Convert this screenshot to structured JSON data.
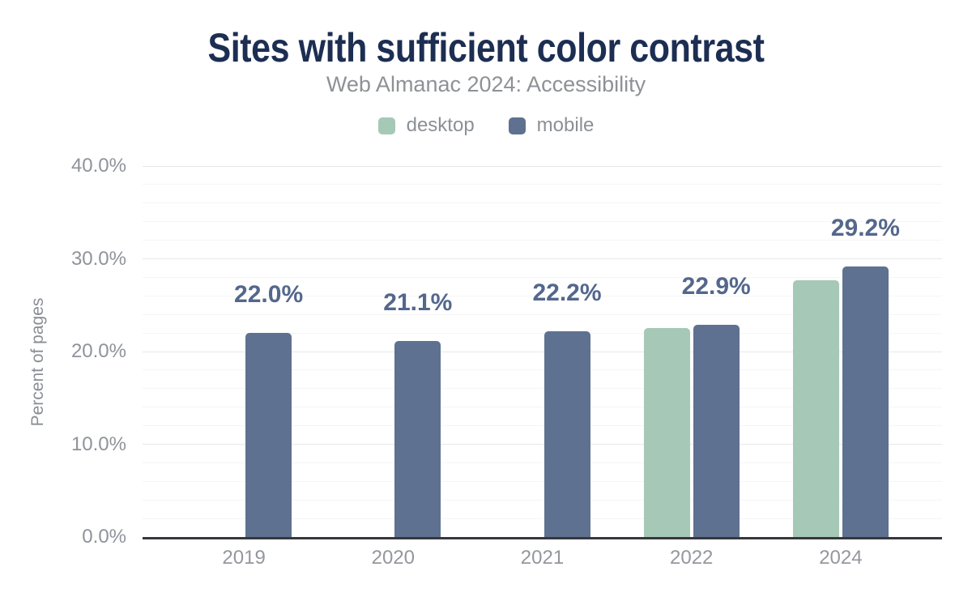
{
  "header": {
    "title": "Sites with sufficient color contrast",
    "subtitle": "Web Almanac 2024: Accessibility"
  },
  "chart_data": {
    "type": "bar",
    "title": "Sites with sufficient color contrast",
    "subtitle": "Web Almanac 2024: Accessibility",
    "categories": [
      "2019",
      "2020",
      "2021",
      "2022",
      "2024"
    ],
    "series": [
      {
        "name": "desktop",
        "color": "#a6c8b7",
        "values": [
          null,
          null,
          null,
          22.5,
          27.7
        ]
      },
      {
        "name": "mobile",
        "color": "#5e7190",
        "values": [
          22.0,
          21.1,
          22.2,
          22.9,
          29.2
        ]
      }
    ],
    "bar_labels": [
      "22.0%",
      "21.1%",
      "22.2%",
      "22.9%",
      "29.2%"
    ],
    "xlabel": "",
    "ylabel": "Percent of pages",
    "ylim": [
      0,
      40
    ],
    "yticks": [
      {
        "value": 0,
        "label": "0.0%"
      },
      {
        "value": 10,
        "label": "10.0%"
      },
      {
        "value": 20,
        "label": "20.0%"
      },
      {
        "value": 30,
        "label": "30.0%"
      },
      {
        "value": 40,
        "label": "40.0%"
      }
    ],
    "grid": {
      "minor_step": 2,
      "major_step": 10,
      "visible": true
    },
    "legend_position": "top"
  },
  "colors": {
    "title": "#1c2e52",
    "subtitle": "#8e9196",
    "axis_text": "#8f939a",
    "bar_value_label": "#54678c",
    "desktop": "#a6c8b7",
    "mobile": "#5e7190",
    "grid_major": "#e8e8e8",
    "grid_minor": "#f5f5f5",
    "axis_line": "#38373d",
    "background": "#ffffff"
  }
}
